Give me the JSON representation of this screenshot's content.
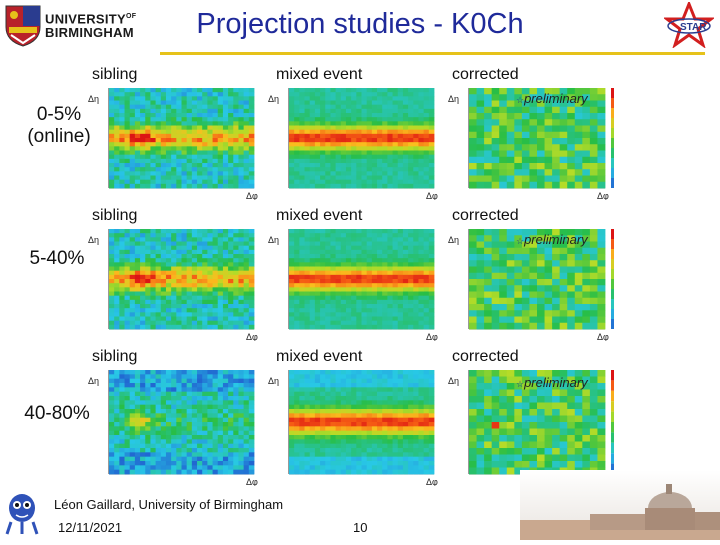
{
  "header": {
    "title": "Projection studies - K0Ch",
    "university": [
      "UNIVERSITY",
      "OF",
      "BIRMINGHAM"
    ],
    "experiment_logo_text": "STAR"
  },
  "columns": [
    "sibling",
    "mixed event",
    "corrected"
  ],
  "rows": [
    {
      "label_lines": [
        "0-5%",
        "(online)"
      ]
    },
    {
      "label_lines": [
        "5-40%"
      ]
    },
    {
      "label_lines": [
        "40-80%"
      ]
    }
  ],
  "preliminary_label": "preliminary",
  "axis_labels": {
    "x": "Δφ",
    "y_rows_1_2": "Δη",
    "y_row_3": "Δη"
  },
  "footer": {
    "author": "Léon Gaillard, University of Birmingham",
    "date": "12/11/2021",
    "page": "10"
  },
  "colors": {
    "title": "#1f2a9a",
    "rule": "#e6c21a",
    "heat_bg": "#1f9a3a"
  }
}
